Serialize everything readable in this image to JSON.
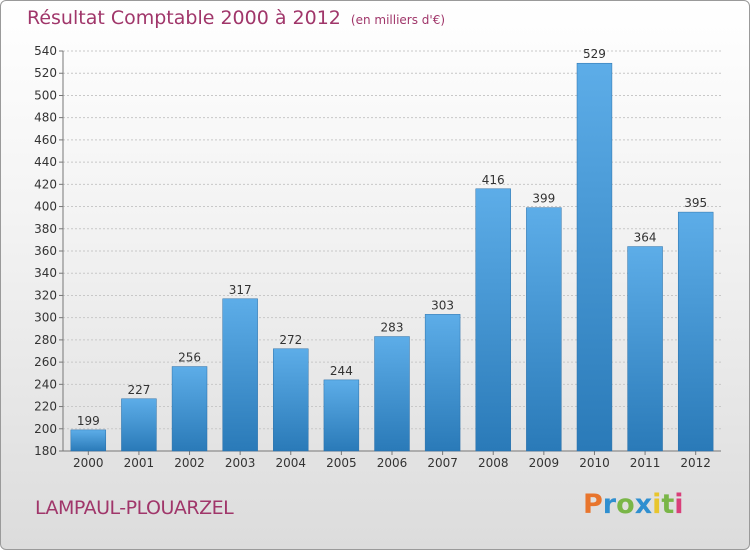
{
  "title": "Résultat Comptable 2000 à 2012",
  "subtitle": "(en milliers d'€)",
  "commune": "LAMPAUL-PLOUARZEL",
  "logo": {
    "letters": [
      "P",
      "r",
      "o",
      "x",
      "i",
      "t",
      "i"
    ],
    "colors": [
      "#e8752d",
      "#2f8fd0",
      "#7ab648",
      "#2f8fd0",
      "#e8c52d",
      "#7ab648",
      "#d93f7a"
    ]
  },
  "colors": {
    "bar_top": "#5dade8",
    "bar_bottom": "#2a7ab8",
    "accent": "#a0366a"
  },
  "chart_data": {
    "type": "bar",
    "title": "Résultat Comptable 2000 à 2012",
    "xlabel": "",
    "ylabel": "",
    "ylim": [
      180,
      540
    ],
    "ytick_step": 20,
    "grid": true,
    "categories": [
      "2000",
      "2001",
      "2002",
      "2003",
      "2004",
      "2005",
      "2006",
      "2007",
      "2008",
      "2009",
      "2010",
      "2011",
      "2012"
    ],
    "values": [
      199,
      227,
      256,
      317,
      272,
      244,
      283,
      303,
      416,
      399,
      529,
      364,
      395
    ]
  }
}
